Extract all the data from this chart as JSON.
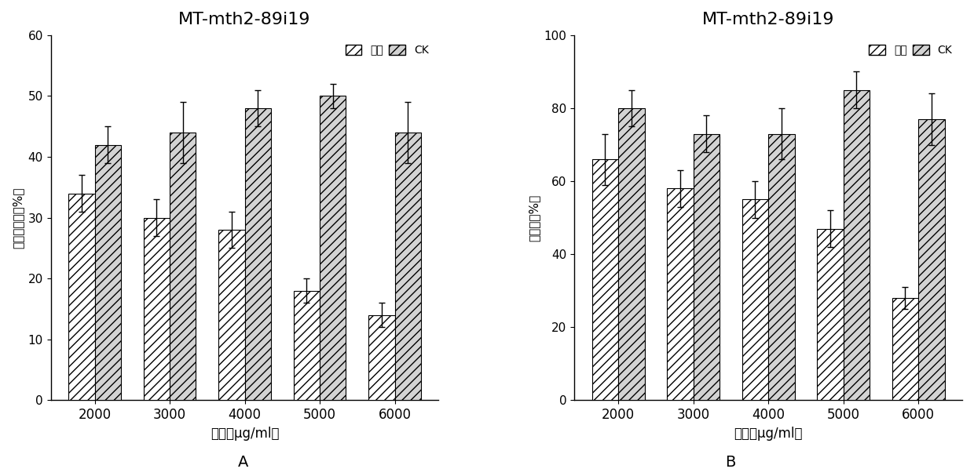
{
  "title": "MT-mth2-89i19",
  "categories": [
    "2000",
    "3000",
    "4000",
    "5000",
    "6000"
  ],
  "xlabel": "浓度（μg/ml）",
  "chart_A": {
    "ylabel": "成虫存活率（%）",
    "treatment_values": [
      34,
      30,
      28,
      18,
      14
    ],
    "treatment_errors": [
      3,
      3,
      3,
      2,
      2
    ],
    "ck_values": [
      42,
      44,
      48,
      50,
      44
    ],
    "ck_errors": [
      3,
      5,
      3,
      2,
      5
    ],
    "ylim": [
      0,
      60
    ],
    "yticks": [
      0,
      10,
      20,
      30,
      40,
      50,
      60
    ]
  },
  "chart_B": {
    "ylabel": "繁殖率（%）",
    "treatment_values": [
      66,
      58,
      55,
      47,
      28
    ],
    "treatment_errors": [
      7,
      5,
      5,
      5,
      3
    ],
    "ck_values": [
      80,
      73,
      73,
      85,
      77
    ],
    "ck_errors": [
      5,
      5,
      7,
      5,
      7
    ],
    "ylim": [
      0,
      100
    ],
    "yticks": [
      0,
      20,
      40,
      60,
      80,
      100
    ]
  },
  "legend_treatment": "处理",
  "legend_ck": "CK",
  "label_A": "A",
  "label_B": "B",
  "hatch_treatment": "///",
  "hatch_ck": "///",
  "bar_color": "white",
  "edge_color": "black"
}
